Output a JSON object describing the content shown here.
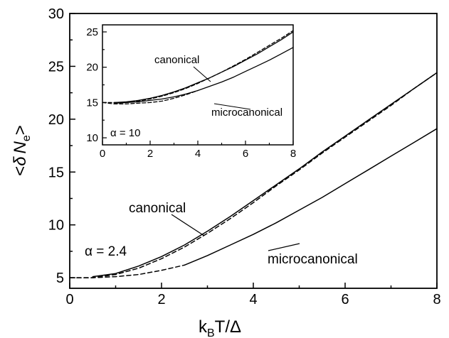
{
  "chart_data": [
    {
      "id": "main",
      "type": "line",
      "xlabel": {
        "main": "k",
        "sub": "B",
        "rest": "T/Δ"
      },
      "ylabel": {
        "pre": "<",
        "delta": "δ",
        "N": "N",
        "sub": "e",
        "post": ">"
      },
      "xlim": [
        0,
        8
      ],
      "ylim": [
        4,
        30
      ],
      "xticks": [
        0,
        2,
        4,
        6,
        8
      ],
      "yticks": [
        5,
        10,
        15,
        20,
        25,
        30
      ],
      "grid": false,
      "annotations": {
        "param": "α = 2.4",
        "canonical": "canonical",
        "microcanonical": "microcanonical"
      },
      "series": [
        {
          "name": "canonical",
          "style": "solid",
          "x": [
            0.5,
            1.0,
            1.5,
            2.0,
            2.5,
            3.0,
            3.5,
            4.0,
            4.5,
            5.0,
            5.5,
            6.0,
            6.5,
            7.0,
            7.5,
            8.0
          ],
          "y": [
            5.1,
            5.4,
            6.1,
            7.0,
            8.1,
            9.4,
            10.8,
            12.3,
            13.8,
            15.3,
            16.9,
            18.4,
            19.9,
            21.4,
            22.9,
            24.4
          ]
        },
        {
          "name": "canonical",
          "style": "dashed",
          "x": [
            0.0,
            0.5,
            1.0,
            1.5,
            2.0,
            2.5,
            3.0,
            3.5,
            4.0,
            4.5,
            5.0,
            5.5,
            6.0,
            6.5,
            7.0,
            7.5,
            8.0
          ],
          "y": [
            5.0,
            5.0,
            5.3,
            5.9,
            6.8,
            7.9,
            9.2,
            10.6,
            12.1,
            13.7,
            15.2,
            16.8,
            18.3,
            19.8,
            21.3,
            22.9,
            24.4
          ]
        },
        {
          "name": "microcanonical",
          "style": "solid",
          "x": [
            2.5,
            3.0,
            3.5,
            4.0,
            4.5,
            5.0,
            5.5,
            6.0,
            6.5,
            7.0,
            7.5,
            8.0
          ],
          "y": [
            6.2,
            7.1,
            8.1,
            9.1,
            10.2,
            11.4,
            12.6,
            13.9,
            15.2,
            16.5,
            17.8,
            19.1
          ]
        },
        {
          "name": "microcanonical",
          "style": "dashed",
          "x": [
            0.0,
            0.5,
            1.0,
            1.5,
            2.0,
            2.5
          ],
          "y": [
            5.0,
            5.0,
            5.1,
            5.3,
            5.7,
            6.2
          ]
        }
      ]
    },
    {
      "id": "inset",
      "type": "line",
      "xlim": [
        0,
        8
      ],
      "ylim": [
        9,
        26
      ],
      "xticks": [
        0,
        2,
        4,
        6,
        8
      ],
      "yticks": [
        10,
        15,
        20,
        25
      ],
      "grid": false,
      "annotations": {
        "param": "α = 10",
        "canonical": "canonical",
        "microcanonical": "microcanonical"
      },
      "series": [
        {
          "name": "canonical",
          "style": "solid",
          "x": [
            0.5,
            1.0,
            1.5,
            2.0,
            2.5,
            3.0,
            3.5,
            4.0,
            4.5,
            5.0,
            5.5,
            6.0,
            6.5,
            7.0,
            7.5,
            8.0
          ],
          "y": [
            15.0,
            15.1,
            15.3,
            15.6,
            16.0,
            16.5,
            17.1,
            17.8,
            18.5,
            19.3,
            20.1,
            21.0,
            21.9,
            22.9,
            23.9,
            25.0
          ]
        },
        {
          "name": "canonical",
          "style": "dashed",
          "x": [
            0.0,
            0.5,
            1.0,
            1.5,
            2.0,
            2.5,
            3.0,
            3.5,
            4.0,
            4.5,
            5.0,
            5.5,
            6.0,
            6.5,
            7.0,
            7.5,
            8.0
          ],
          "y": [
            15.0,
            15.0,
            15.0,
            15.2,
            15.5,
            15.9,
            16.4,
            17.0,
            17.7,
            18.5,
            19.3,
            20.2,
            21.1,
            22.1,
            23.1,
            24.1,
            25.2
          ]
        },
        {
          "name": "microcanonical",
          "style": "solid",
          "x": [
            0.5,
            1.0,
            1.5,
            2.0,
            2.5,
            3.0,
            3.5,
            4.0,
            4.5,
            5.0,
            5.5,
            6.0,
            6.5,
            7.0,
            7.5,
            8.0
          ],
          "y": [
            14.9,
            15.0,
            15.1,
            15.3,
            15.5,
            15.8,
            16.2,
            16.7,
            17.3,
            17.9,
            18.6,
            19.4,
            20.2,
            21.0,
            21.9,
            22.8
          ]
        },
        {
          "name": "microcanonical",
          "style": "dashed",
          "x": [
            0.0,
            0.5,
            1.0,
            1.5,
            2.0,
            2.5,
            3.0,
            3.5,
            4.0
          ],
          "y": [
            15.0,
            14.8,
            14.8,
            14.9,
            15.0,
            15.2,
            15.6,
            16.1,
            16.7
          ]
        }
      ]
    }
  ]
}
